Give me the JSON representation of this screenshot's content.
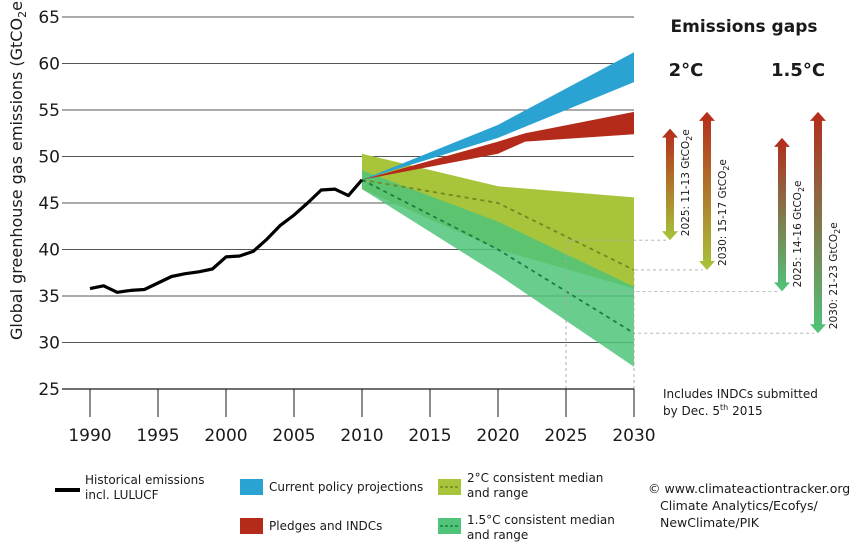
{
  "chart_data": {
    "type": "area",
    "ylabel_main": "Global greenhouse gas emissions (GtCO",
    "ylabel_sub": "2",
    "ylabel_tail": "e)",
    "ylim": [
      25,
      65
    ],
    "xlim": [
      1990,
      2030
    ],
    "y_ticks": [
      "25",
      "30",
      "35",
      "40",
      "45",
      "50",
      "55",
      "60",
      "65"
    ],
    "x_ticks": [
      "1990",
      "1995",
      "2000",
      "2005",
      "2010",
      "2015",
      "2020",
      "2025",
      "2030"
    ],
    "grid": "horizontal",
    "historical": {
      "name": "Historical emissions incl. LULUCF",
      "x": [
        1990,
        1991,
        1992,
        1993,
        1994,
        1995,
        1996,
        1997,
        1998,
        1999,
        2000,
        2001,
        2002,
        2003,
        2004,
        2005,
        2006,
        2007,
        2008,
        2009,
        2010
      ],
      "y": [
        35.8,
        36.1,
        35.4,
        35.6,
        35.7,
        36.4,
        37.1,
        37.4,
        37.6,
        37.9,
        39.2,
        39.3,
        39.8,
        41.1,
        42.6,
        43.7,
        45.0,
        46.4,
        46.5,
        45.8,
        47.5
      ]
    },
    "series": [
      {
        "name": "Current policy projections",
        "color": "#2aa3d3",
        "x": [
          2010,
          2020,
          2030
        ],
        "upper": [
          47.5,
          53.4,
          61.2
        ],
        "lower": [
          47.5,
          52.0,
          58.0
        ]
      },
      {
        "name": "Pledges and INDCs",
        "color": "#b52b1b",
        "x": [
          2010,
          2020,
          2022,
          2030
        ],
        "upper": [
          47.5,
          51.6,
          52.5,
          54.8
        ],
        "lower": [
          47.5,
          50.3,
          51.6,
          52.4
        ]
      },
      {
        "name": "2°C consistent median and range",
        "color": "#a8c43a",
        "x": [
          2010,
          2020,
          2030
        ],
        "upper": [
          50.3,
          46.8,
          45.6
        ],
        "lower": [
          46.5,
          40.0,
          35.8
        ],
        "median": [
          47.5,
          45.0,
          37.8
        ]
      },
      {
        "name": "1.5°C consistent median and range",
        "color": "#4fc47a",
        "x": [
          2010,
          2020,
          2030
        ],
        "upper": [
          48.5,
          43.0,
          36.0
        ],
        "lower": [
          46.5,
          37.3,
          27.4
        ],
        "median": [
          47.5,
          40.0,
          31.0
        ]
      }
    ],
    "gaps_title": "Emissions gaps",
    "gaps": [
      {
        "group": "2°C",
        "label": "2025: 11-13 GtCO",
        "sub": "2",
        "tail": "e",
        "year": 2025,
        "top": 53.0,
        "bottom": 41.0
      },
      {
        "group": "2°C",
        "label": "2030: 15-17 GtCO",
        "sub": "2",
        "tail": "e",
        "year": 2030,
        "top": 54.8,
        "bottom": 37.8
      },
      {
        "group": "1.5°C",
        "label": "2025: 14-16 GtCO",
        "sub": "2",
        "tail": "e",
        "year": 2025,
        "top": 52.0,
        "bottom": 35.5
      },
      {
        "group": "1.5°C",
        "label": "2030: 21-23 GtCO",
        "sub": "2",
        "tail": "e",
        "year": 2030,
        "top": 54.8,
        "bottom": 31.0
      }
    ],
    "gap_headers": [
      "2°C",
      "1.5°C"
    ],
    "note_line1": "Includes INDCs submitted",
    "note_line2_pre": "by Dec. 5",
    "note_line2_sup": "th",
    "note_line2_post": " 2015"
  },
  "legend": {
    "historical_line1": "Historical emissions",
    "historical_line2": "incl. LULUCF",
    "current_policy": "Current policy projections",
    "pledges": "Pledges and INDCs",
    "two_deg_line1": "2°C consistent median",
    "two_deg_line2": "and range",
    "one_five_line1": "1.5°C consistent median",
    "one_five_line2": "and range"
  },
  "source": {
    "line1": "© www.climateactiontracker.org/",
    "line2": "Climate Analytics/Ecofys/",
    "line3": "NewClimate/PIK"
  },
  "colors": {
    "historical": "#000000",
    "current_policy": "#2aa3d3",
    "pledges": "#b52b1b",
    "two_deg": "#a8c43a",
    "one_five": "#4fc47a",
    "median_2c": "#6f8a22",
    "median_15c": "#1e7d43",
    "grid": "#555555"
  }
}
